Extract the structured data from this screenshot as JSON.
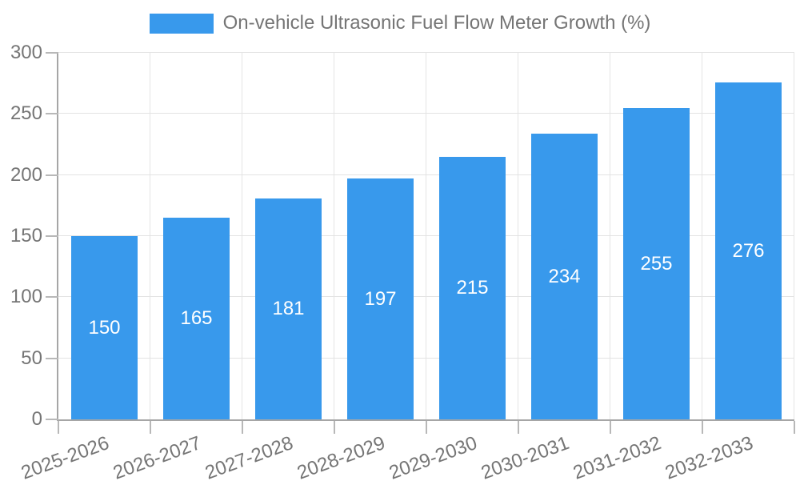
{
  "chart_data": {
    "type": "bar",
    "title": "On-vehicle Ultrasonic Fuel Flow Meter Growth (%)",
    "legend": {
      "label": "On-vehicle Ultrasonic Fuel Flow Meter Growth (%)",
      "position": "top"
    },
    "categories": [
      "2025-2026",
      "2026-2027",
      "2027-2028",
      "2028-2029",
      "2029-2030",
      "2030-2031",
      "2031-2032",
      "2032-2033"
    ],
    "values": [
      150,
      165,
      181,
      197,
      215,
      234,
      255,
      276
    ],
    "series": [
      {
        "name": "On-vehicle Ultrasonic Fuel Flow Meter Growth (%)",
        "values": [
          150,
          165,
          181,
          197,
          215,
          234,
          255,
          276
        ]
      }
    ],
    "xlabel": "",
    "ylabel": "",
    "ylim": [
      0,
      300
    ],
    "ytick_step": 50,
    "yticks": [
      0,
      50,
      100,
      150,
      200,
      250,
      300
    ],
    "grid": true,
    "x_label_rotation_deg": -20,
    "value_labels": "centered-inside-bars",
    "colors": {
      "bar": "#3899EC",
      "bar_label": "#FFFFFF",
      "text": "#757575",
      "axis": "#A6A6A6",
      "tick": "#B8B8B8",
      "grid": "#E3E3E3",
      "background": "#FFFFFF"
    }
  }
}
